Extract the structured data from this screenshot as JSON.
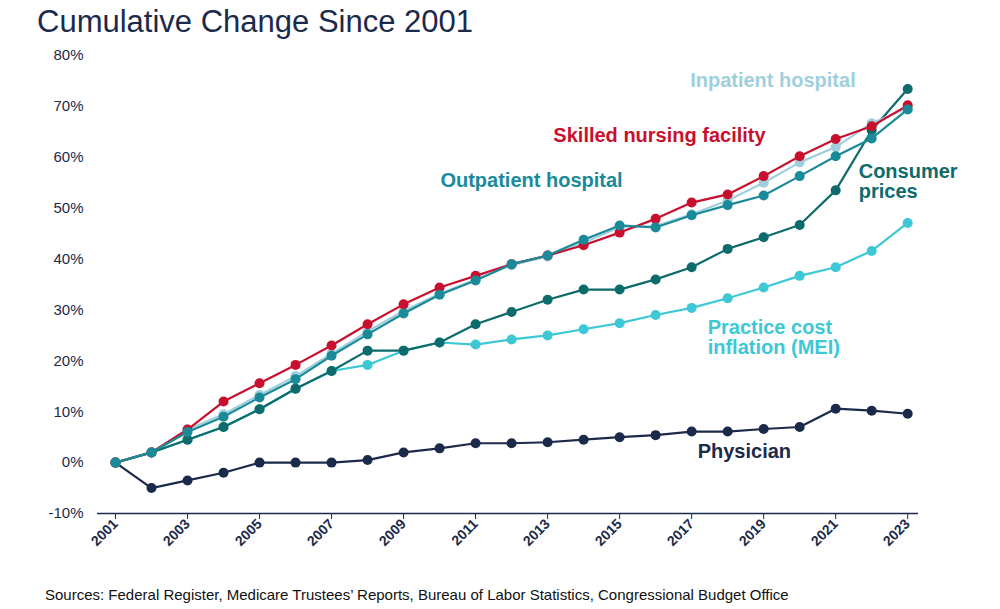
{
  "chart_data": {
    "type": "line",
    "title": "Cumulative Change Since 2001",
    "source": "Sources: Federal Register, Medicare Trustees’ Reports, Bureau of Labor Statistics, Congressional Budget Office",
    "x": [
      2001,
      2002,
      2003,
      2004,
      2005,
      2006,
      2007,
      2008,
      2009,
      2010,
      2011,
      2012,
      2013,
      2014,
      2015,
      2016,
      2017,
      2018,
      2019,
      2020,
      2021,
      2022,
      2023
    ],
    "xlim": [
      2000.5,
      2023.3
    ],
    "xticks": [
      2001,
      2003,
      2005,
      2007,
      2009,
      2011,
      2013,
      2015,
      2017,
      2019,
      2021,
      2023
    ],
    "ylim": [
      -10,
      80
    ],
    "yticks": [
      {
        "value": -10,
        "label": "-10%"
      },
      {
        "value": 0,
        "label": "0%"
      },
      {
        "value": 10,
        "label": "10%"
      },
      {
        "value": 20,
        "label": "20%"
      },
      {
        "value": 30,
        "label": "30%"
      },
      {
        "value": 40,
        "label": "40%"
      },
      {
        "value": 50,
        "label": "50%"
      },
      {
        "value": 60,
        "label": "60%"
      },
      {
        "value": 70,
        "label": "70%"
      },
      {
        "value": 80,
        "label": "80%"
      }
    ],
    "grid": false,
    "marker": "circle",
    "series": [
      {
        "name": "Physician",
        "color": "#1b2a4a",
        "values": [
          0,
          -5,
          -3.5,
          -2,
          0,
          0,
          0,
          0.5,
          2,
          2.8,
          3.8,
          3.8,
          4,
          4.5,
          5,
          5.4,
          6.1,
          6.1,
          6.6,
          7,
          10.6,
          10.2,
          9.6
        ]
      },
      {
        "name": "Practice cost inflation (MEI)",
        "color": "#3cc8d4",
        "values": [
          0,
          2,
          4.5,
          7,
          10.5,
          14.5,
          18,
          19.2,
          22,
          23.6,
          23.2,
          24.2,
          25,
          26.2,
          27.4,
          29,
          30.4,
          32.3,
          34.4,
          36.7,
          38.4,
          41.6,
          47.1
        ]
      },
      {
        "name": "Consumer prices",
        "color": "#0e6b6b",
        "values": [
          0,
          2,
          4.5,
          7,
          10.5,
          14.5,
          18,
          22,
          22,
          23.6,
          27.2,
          29.6,
          32,
          34,
          34,
          36,
          38.4,
          42,
          44.3,
          46.7,
          53.5,
          65.3,
          73.4
        ]
      },
      {
        "name": "Inpatient hospital",
        "color": "#9fcfdc",
        "values": [
          0,
          2,
          6.5,
          9.5,
          13.3,
          17,
          21.4,
          25.8,
          29.8,
          33.2,
          36,
          38.8,
          40.5,
          43.2,
          46.3,
          46.5,
          48.8,
          51.5,
          55,
          59,
          62,
          66.7,
          69.7
        ]
      },
      {
        "name": "Skilled nursing facility",
        "color": "#c8102e",
        "values": [
          0,
          2,
          6.5,
          12,
          15.6,
          19.2,
          23,
          27.2,
          31.1,
          34.4,
          36.7,
          39,
          40.7,
          42.7,
          45.2,
          47.9,
          51.1,
          52.7,
          56.3,
          60.2,
          63.6,
          66.1,
          70.2
        ]
      },
      {
        "name": "Outpatient hospital",
        "color": "#1a8a99",
        "values": [
          0,
          2,
          6,
          9,
          12.8,
          16.4,
          21,
          25.2,
          29.3,
          33,
          35.8,
          39,
          40.7,
          43.8,
          46.6,
          46.2,
          48.6,
          50.6,
          52.5,
          56.3,
          60.2,
          63.7,
          69.4
        ]
      }
    ]
  }
}
